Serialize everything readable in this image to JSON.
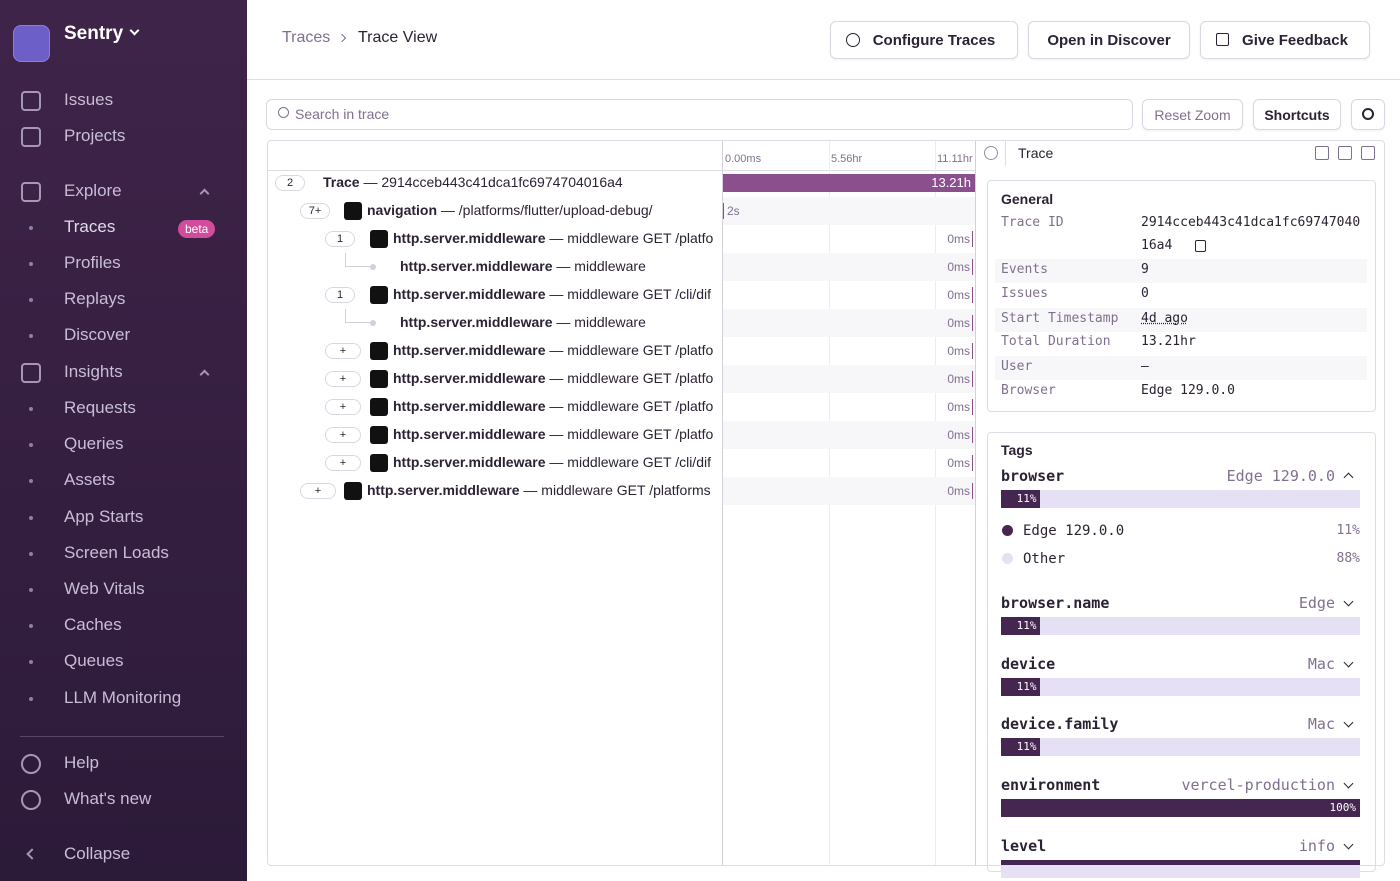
{
  "sidebar": {
    "org": "Sentry",
    "primary": [
      "Issues",
      "Projects"
    ],
    "explore": {
      "title": "Explore",
      "items": [
        "Traces",
        "Profiles",
        "Replays",
        "Discover"
      ],
      "badge": "beta"
    },
    "insights": {
      "title": "Insights",
      "items": [
        "Requests",
        "Queries",
        "Assets",
        "App Starts",
        "Screen Loads",
        "Web Vitals",
        "Caches",
        "Queues",
        "LLM Monitoring"
      ]
    },
    "footer": [
      "Help",
      "What's new"
    ],
    "collapse": "Collapse"
  },
  "header": {
    "breadcrumbs": [
      "Traces",
      "Trace View"
    ],
    "buttons": [
      "Configure Traces",
      "Open in Discover",
      "Give Feedback"
    ]
  },
  "toolbar": {
    "search_placeholder": "Search in trace",
    "buttons": [
      "Reset Zoom",
      "Shortcuts"
    ]
  },
  "timeline": {
    "ticks": [
      "0.00ms",
      "5.56hr",
      "11.11hr"
    ]
  },
  "rows": [
    {
      "badge": "2",
      "op": "Trace",
      "desc": "2914cceb443c41dca1fc6974704016a4",
      "duration": "13.21h"
    },
    {
      "badge": "7+",
      "op": "navigation",
      "desc": "/platforms/flutter/upload-debug/",
      "duration": "2s"
    },
    {
      "badge": "1",
      "op": "http.server.middleware",
      "desc": "middleware GET /platfo",
      "duration": "0ms"
    },
    {
      "op": "http.server.middleware",
      "desc": "middleware",
      "duration": "0ms"
    },
    {
      "badge": "1",
      "op": "http.server.middleware",
      "desc": "middleware GET /cli/dif",
      "duration": "0ms"
    },
    {
      "op": "http.server.middleware",
      "desc": "middleware",
      "duration": "0ms"
    },
    {
      "badge": "+",
      "op": "http.server.middleware",
      "desc": "middleware GET /platfo",
      "duration": "0ms"
    },
    {
      "badge": "+",
      "op": "http.server.middleware",
      "desc": "middleware GET /platfo",
      "duration": "0ms"
    },
    {
      "badge": "+",
      "op": "http.server.middleware",
      "desc": "middleware GET /platfo",
      "duration": "0ms"
    },
    {
      "badge": "+",
      "op": "http.server.middleware",
      "desc": "middleware GET /platfo",
      "duration": "0ms"
    },
    {
      "badge": "+",
      "op": "http.server.middleware",
      "desc": "middleware GET /cli/dif",
      "duration": "0ms"
    },
    {
      "badge": "+",
      "op": "http.server.middleware",
      "desc": "middleware GET /platforms",
      "duration": "0ms"
    }
  ],
  "panel": {
    "title": "Trace",
    "general": {
      "title": "General",
      "rows": [
        [
          "Trace ID",
          "2914cceb443c41dca1fc6974704016a4"
        ],
        [
          "Events",
          "9"
        ],
        [
          "Issues",
          "0"
        ],
        [
          "Start Timestamp",
          "4d ago"
        ],
        [
          "Total Duration",
          "13.21hr"
        ],
        [
          "User",
          "—"
        ],
        [
          "Browser",
          "Edge 129.0.0"
        ]
      ]
    },
    "tags": {
      "title": "Tags",
      "items": [
        {
          "name": "browser",
          "value": "Edge 129.0.0",
          "percent": 11,
          "percent_label": "11%",
          "breakdown": [
            {
              "name": "Edge 129.0.0",
              "label": "11%"
            },
            {
              "name": "Other",
              "label": "88%"
            }
          ]
        },
        {
          "name": "browser.name",
          "value": "Edge",
          "percent": 11,
          "percent_label": "11%"
        },
        {
          "name": "device",
          "value": "Mac",
          "percent": 11,
          "percent_label": "11%"
        },
        {
          "name": "device.family",
          "value": "Mac",
          "percent": 11,
          "percent_label": "11%"
        },
        {
          "name": "environment",
          "value": "vercel-production",
          "percent": 100,
          "percent_label": "100%"
        },
        {
          "name": "level",
          "value": "info"
        }
      ]
    }
  }
}
